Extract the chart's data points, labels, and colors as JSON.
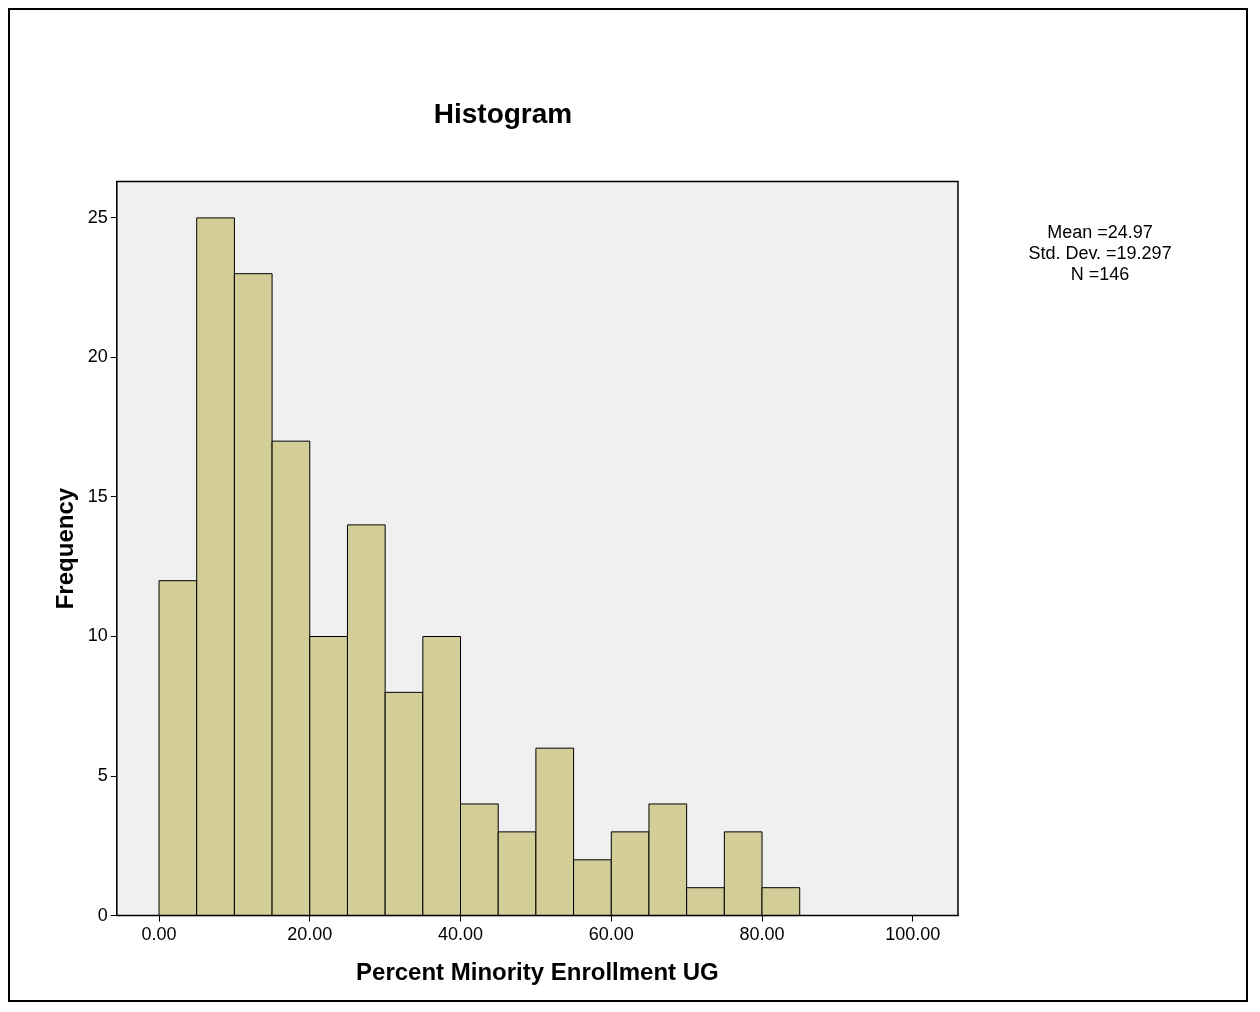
{
  "chart_data": {
    "type": "histogram",
    "title": "Histogram",
    "xlabel": "Percent Minority Enrollment UG",
    "ylabel": "Frequency",
    "bins": [
      0,
      5,
      10,
      15,
      20,
      25,
      30,
      35,
      40,
      45,
      50,
      55,
      60,
      65,
      70,
      75,
      80,
      85
    ],
    "values": [
      12,
      25,
      23,
      17,
      10,
      14,
      8,
      10,
      4,
      3,
      6,
      2,
      3,
      4,
      1,
      3,
      1
    ],
    "color": "#d3ce97",
    "xlim": [
      -5.6,
      106
    ],
    "ylim": [
      0,
      26.3
    ],
    "xticks": [
      {
        "value": 0,
        "label": "0.00"
      },
      {
        "value": 20,
        "label": "20.00"
      },
      {
        "value": 40,
        "label": "40.00"
      },
      {
        "value": 60,
        "label": "60.00"
      },
      {
        "value": 80,
        "label": "80.00"
      },
      {
        "value": 100,
        "label": "100.00"
      }
    ],
    "yticks": [
      0,
      5,
      10,
      15,
      20,
      25
    ],
    "annotations": [
      "Mean =24.97",
      "Std. Dev. =19.297",
      "N =146"
    ]
  }
}
